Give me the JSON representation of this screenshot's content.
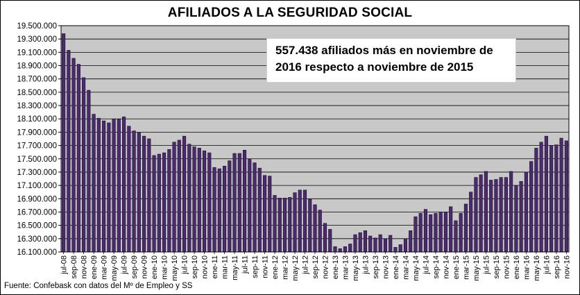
{
  "title": "AFILIADOS A LA SEGURIDAD SOCIAL",
  "annotation": {
    "line1": "557.438 afiliados más en noviembre de",
    "line2": "2016 respecto a noviembre de 2015"
  },
  "source": "Fuente: Confebask con datos del Mº de Empleo y SS",
  "colors": {
    "bar": "#4b2a6e",
    "bar_edge": "#1a0d2a",
    "plot_bg": "#c8c8c8",
    "grid": "#000000"
  },
  "chart_data": {
    "type": "bar",
    "ylim": [
      16100000,
      19500000
    ],
    "yticks": [
      16100000,
      16300000,
      16500000,
      16700000,
      16900000,
      17100000,
      17300000,
      17500000,
      17700000,
      17900000,
      18100000,
      18300000,
      18500000,
      18700000,
      18900000,
      19100000,
      19300000,
      19500000
    ],
    "ytick_labels": [
      "16.100.000",
      "16.300.000",
      "16.500.000",
      "16.700.000",
      "16.900.000",
      "17.100.000",
      "17.300.000",
      "17.500.000",
      "17.700.000",
      "17.900.000",
      "18.100.000",
      "18.300.000",
      "18.500.000",
      "18.700.000",
      "18.900.000",
      "19.100.000",
      "19.300.000",
      "19.500.000"
    ],
    "categories": [
      "jul-08",
      "ago-08",
      "sep-08",
      "oct-08",
      "nov-08",
      "dic-08",
      "ene-09",
      "feb-09",
      "mar-09",
      "abr-09",
      "may-09",
      "jun-09",
      "jul-09",
      "ago-09",
      "sep-09",
      "oct-09",
      "nov-09",
      "dic-09",
      "ene-10",
      "feb-10",
      "mar-10",
      "abr-10",
      "may-10",
      "jun-10",
      "jul-10",
      "ago-10",
      "sep-10",
      "oct-10",
      "nov-10",
      "dic-10",
      "ene-11",
      "feb-11",
      "mar-11",
      "abr-11",
      "may-11",
      "jun-11",
      "jul-11",
      "ago-11",
      "sep-11",
      "oct-11",
      "nov-11",
      "dic-11",
      "ene-12",
      "feb-12",
      "mar-12",
      "abr-12",
      "may-12",
      "jun-12",
      "jul-12",
      "ago-12",
      "sep-12",
      "oct-12",
      "nov-12",
      "dic-12",
      "ene-13",
      "feb-13",
      "mar-13",
      "abr-13",
      "may-13",
      "jun-13",
      "jul-13",
      "ago-13",
      "sep-13",
      "oct-13",
      "nov-13",
      "dic-13",
      "ene-14",
      "feb-14",
      "mar-14",
      "abr-14",
      "may-14",
      "jun-14",
      "jul-14",
      "ago-14",
      "sep-14",
      "oct-14",
      "nov-14",
      "dic-14",
      "ene-15",
      "feb-15",
      "mar-15",
      "abr-15",
      "may-15",
      "jun-15",
      "jul-15",
      "ago-15",
      "sep-15",
      "oct-15",
      "nov-15",
      "dic-15",
      "ene-16",
      "feb-16",
      "mar-16",
      "abr-16",
      "may-16",
      "jun-16",
      "jul-16",
      "ago-16",
      "sep-16",
      "oct-16",
      "nov-16"
    ],
    "shown_labels": [
      "jul-08",
      "sep-08",
      "nov-08",
      "ene-09",
      "mar-09",
      "may-09",
      "jul-09",
      "sep-09",
      "nov-09",
      "ene-10",
      "mar-10",
      "may-10",
      "jul-10",
      "sep-10",
      "nov-10",
      "ene-11",
      "mar-11",
      "may-11",
      "jul-11",
      "sep-11",
      "nov-11",
      "ene-12",
      "mar-12",
      "may-12",
      "jul-12",
      "sep-12",
      "nov-12",
      "ene-13",
      "mar-13",
      "may-13",
      "jul-13",
      "sep-13",
      "nov-13",
      "ene-14",
      "mar-14",
      "may-14",
      "jul-14",
      "sep-14",
      "nov-14",
      "ene-15",
      "mar-15",
      "may-15",
      "jul-15",
      "sep-15",
      "nov-15",
      "ene-16",
      "mar-16",
      "may-16",
      "jul-16",
      "sep-16",
      "nov-16"
    ],
    "values": [
      19380000,
      19130000,
      19010000,
      18920000,
      18720000,
      18530000,
      18170000,
      18110000,
      18070000,
      18040000,
      18100000,
      18100000,
      18130000,
      17990000,
      17920000,
      17890000,
      17840000,
      17800000,
      17550000,
      17570000,
      17590000,
      17640000,
      17750000,
      17780000,
      17840000,
      17720000,
      17680000,
      17660000,
      17620000,
      17590000,
      17370000,
      17350000,
      17390000,
      17470000,
      17580000,
      17580000,
      17630000,
      17500000,
      17440000,
      17360000,
      17250000,
      17240000,
      16950000,
      16910000,
      16910000,
      16920000,
      16990000,
      17030000,
      17030000,
      16890000,
      16810000,
      16730000,
      16530000,
      16440000,
      16180000,
      16150000,
      16180000,
      16220000,
      16360000,
      16390000,
      16420000,
      16340000,
      16310000,
      16360000,
      16300000,
      16350000,
      16170000,
      16210000,
      16300000,
      16420000,
      16630000,
      16680000,
      16740000,
      16660000,
      16680000,
      16700000,
      16700000,
      16780000,
      16570000,
      16680000,
      16820000,
      17000000,
      17220000,
      17260000,
      17310000,
      17180000,
      17190000,
      17220000,
      17220000,
      17310000,
      17100000,
      17160000,
      17300000,
      17460000,
      17660000,
      17750000,
      17840000,
      17700000,
      17710000,
      17810000,
      17770000
    ],
    "grid": true,
    "legend": "none"
  }
}
